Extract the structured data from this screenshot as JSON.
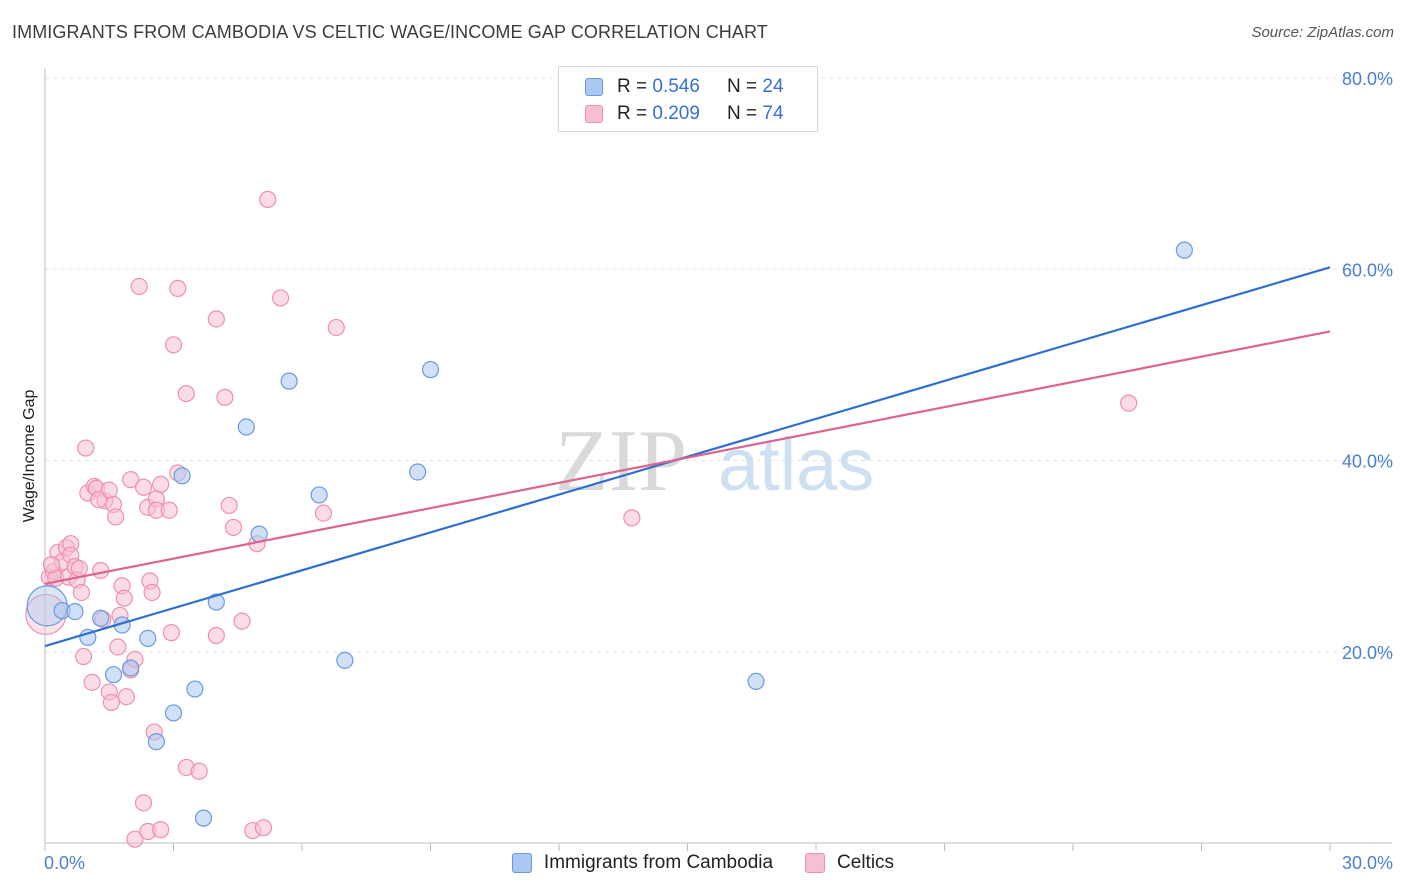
{
  "title": "IMMIGRANTS FROM CAMBODIA VS CELTIC WAGE/INCOME GAP CORRELATION CHART",
  "source": "Source: ZipAtlas.com",
  "watermark": {
    "zip": "ZIP",
    "atlas": "atlas"
  },
  "legend": {
    "rows": [
      {
        "r_label": "R = ",
        "r_value": "0.546",
        "n_label": "N = ",
        "n_value": "24"
      },
      {
        "r_label": "R = ",
        "r_value": "0.209",
        "n_label": "N = ",
        "n_value": "74"
      }
    ]
  },
  "colors": {
    "blue_fill": "#aac8f0",
    "blue_stroke": "#6a9ae0",
    "blue_line": "#2f6fd0",
    "pink_fill": "#f7c0d2",
    "pink_stroke": "#ee8fb0",
    "pink_line": "#e0628e",
    "tick_color": "#4a7fd4"
  },
  "chart_data": {
    "type": "scatter",
    "title": "IMMIGRANTS FROM CAMBODIA VS CELTIC WAGE/INCOME GAP CORRELATION CHART",
    "xlabel": "",
    "ylabel": "Wage/Income Gap",
    "xlim": [
      0,
      30
    ],
    "ylim": [
      0,
      80
    ],
    "x_ticks": [
      "0.0%",
      "30.0%"
    ],
    "y_ticks": [
      {
        "value": 20,
        "label": "20.0%"
      },
      {
        "value": 40,
        "label": "40.0%"
      },
      {
        "value": 60,
        "label": "60.0%"
      },
      {
        "value": 80,
        "label": "80.0%"
      }
    ],
    "grid": true,
    "legend_position": "top-center",
    "series": [
      {
        "name": "Immigrants from Cambodia",
        "color": "blue",
        "trendline": {
          "x": [
            0,
            30
          ],
          "y": [
            20.6,
            60.2
          ]
        },
        "points": [
          {
            "x": 0.05,
            "y": 24.8,
            "big": true
          },
          {
            "x": 0.4,
            "y": 24.3
          },
          {
            "x": 0.7,
            "y": 24.2
          },
          {
            "x": 1.0,
            "y": 21.5
          },
          {
            "x": 1.3,
            "y": 23.5
          },
          {
            "x": 1.6,
            "y": 17.6
          },
          {
            "x": 1.8,
            "y": 22.8
          },
          {
            "x": 2.0,
            "y": 18.3
          },
          {
            "x": 2.4,
            "y": 21.4
          },
          {
            "x": 2.6,
            "y": 10.6
          },
          {
            "x": 3.0,
            "y": 13.6
          },
          {
            "x": 3.2,
            "y": 38.4
          },
          {
            "x": 3.5,
            "y": 16.1
          },
          {
            "x": 3.7,
            "y": 2.6
          },
          {
            "x": 4.0,
            "y": 25.2
          },
          {
            "x": 4.7,
            "y": 43.5
          },
          {
            "x": 5.0,
            "y": 32.3
          },
          {
            "x": 5.7,
            "y": 48.3
          },
          {
            "x": 6.4,
            "y": 36.4
          },
          {
            "x": 7.0,
            "y": 19.1
          },
          {
            "x": 8.7,
            "y": 38.8
          },
          {
            "x": 9.0,
            "y": 49.5
          },
          {
            "x": 16.6,
            "y": 16.9
          },
          {
            "x": 26.6,
            "y": 62.0
          }
        ]
      },
      {
        "name": "Celtics",
        "color": "pink",
        "trendline": {
          "x": [
            0,
            30
          ],
          "y": [
            27.1,
            53.5
          ]
        },
        "points": [
          {
            "x": 0.02,
            "y": 23.9,
            "big": true
          },
          {
            "x": 0.1,
            "y": 27.8
          },
          {
            "x": 0.2,
            "y": 28.4
          },
          {
            "x": 0.25,
            "y": 27.7
          },
          {
            "x": 0.3,
            "y": 30.4
          },
          {
            "x": 0.4,
            "y": 29.4
          },
          {
            "x": 0.5,
            "y": 30.9
          },
          {
            "x": 0.55,
            "y": 27.8
          },
          {
            "x": 0.6,
            "y": 31.3
          },
          {
            "x": 0.6,
            "y": 30.1
          },
          {
            "x": 0.7,
            "y": 28.9
          },
          {
            "x": 0.75,
            "y": 27.5
          },
          {
            "x": 0.8,
            "y": 28.7
          },
          {
            "x": 0.85,
            "y": 26.2
          },
          {
            "x": 0.9,
            "y": 19.5
          },
          {
            "x": 0.95,
            "y": 41.3
          },
          {
            "x": 1.0,
            "y": 36.6
          },
          {
            "x": 1.1,
            "y": 16.8
          },
          {
            "x": 1.15,
            "y": 37.3
          },
          {
            "x": 1.2,
            "y": 37.1
          },
          {
            "x": 1.3,
            "y": 28.5
          },
          {
            "x": 1.35,
            "y": 23.4
          },
          {
            "x": 1.4,
            "y": 35.8
          },
          {
            "x": 1.5,
            "y": 15.8
          },
          {
            "x": 1.5,
            "y": 36.9
          },
          {
            "x": 1.55,
            "y": 14.7
          },
          {
            "x": 1.6,
            "y": 35.4
          },
          {
            "x": 1.65,
            "y": 34.1
          },
          {
            "x": 1.7,
            "y": 20.5
          },
          {
            "x": 1.75,
            "y": 23.8
          },
          {
            "x": 1.8,
            "y": 26.9
          },
          {
            "x": 1.85,
            "y": 25.6
          },
          {
            "x": 1.9,
            "y": 15.3
          },
          {
            "x": 2.0,
            "y": 18.1
          },
          {
            "x": 2.0,
            "y": 38.0
          },
          {
            "x": 2.1,
            "y": 19.2
          },
          {
            "x": 2.1,
            "y": 0.4
          },
          {
            "x": 2.2,
            "y": 58.2
          },
          {
            "x": 2.3,
            "y": 37.2
          },
          {
            "x": 2.3,
            "y": 4.2
          },
          {
            "x": 2.4,
            "y": 1.2
          },
          {
            "x": 2.4,
            "y": 35.1
          },
          {
            "x": 2.45,
            "y": 27.4
          },
          {
            "x": 2.5,
            "y": 26.2
          },
          {
            "x": 2.55,
            "y": 11.6
          },
          {
            "x": 2.6,
            "y": 36.0
          },
          {
            "x": 2.6,
            "y": 34.8
          },
          {
            "x": 2.7,
            "y": 1.4
          },
          {
            "x": 2.7,
            "y": 37.5
          },
          {
            "x": 2.9,
            "y": 34.8
          },
          {
            "x": 2.95,
            "y": 22.0
          },
          {
            "x": 3.0,
            "y": 52.1
          },
          {
            "x": 3.1,
            "y": 58.0
          },
          {
            "x": 3.1,
            "y": 38.7
          },
          {
            "x": 3.3,
            "y": 7.9
          },
          {
            "x": 3.3,
            "y": 47.0
          },
          {
            "x": 3.6,
            "y": 7.5
          },
          {
            "x": 4.0,
            "y": 21.7
          },
          {
            "x": 4.0,
            "y": 54.8
          },
          {
            "x": 4.2,
            "y": 46.6
          },
          {
            "x": 4.3,
            "y": 35.3
          },
          {
            "x": 4.4,
            "y": 33.0
          },
          {
            "x": 4.6,
            "y": 23.2
          },
          {
            "x": 4.85,
            "y": 1.3
          },
          {
            "x": 4.95,
            "y": 31.3
          },
          {
            "x": 5.1,
            "y": 1.6
          },
          {
            "x": 5.2,
            "y": 67.3
          },
          {
            "x": 5.5,
            "y": 57.0
          },
          {
            "x": 6.5,
            "y": 34.5
          },
          {
            "x": 6.8,
            "y": 53.9
          },
          {
            "x": 13.7,
            "y": 34.0
          },
          {
            "x": 25.3,
            "y": 46.0
          },
          {
            "x": 0.15,
            "y": 29.1
          },
          {
            "x": 1.25,
            "y": 35.9
          }
        ]
      }
    ]
  },
  "bottom_legend": {
    "items": [
      {
        "label": "Immigrants from Cambodia"
      },
      {
        "label": "Celtics"
      }
    ]
  }
}
